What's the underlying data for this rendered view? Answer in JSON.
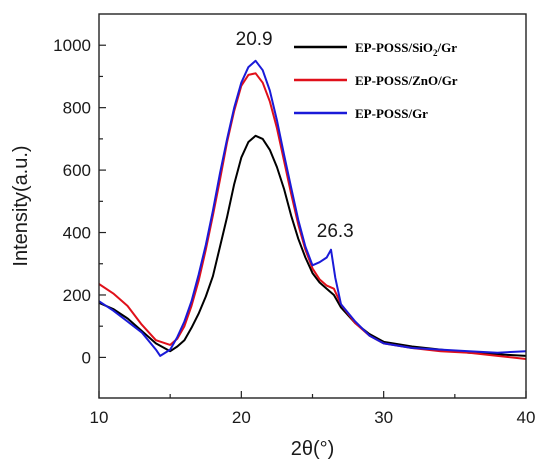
{
  "chart_data": {
    "type": "line",
    "xlabel": "2θ(°)",
    "ylabel": "Intensity(a.u.)",
    "xlim": [
      10,
      40
    ],
    "ylim": [
      -130,
      1100
    ],
    "x_ticks": [
      10,
      20,
      30,
      40
    ],
    "x_tick_labels": [
      "10",
      "20",
      "30",
      "40"
    ],
    "y_ticks": [
      0,
      200,
      400,
      600,
      800,
      1000
    ],
    "y_tick_labels": [
      "0",
      "200",
      "400",
      "600",
      "800",
      "1000"
    ],
    "grid": false,
    "legend_position": "top-right",
    "legend": [
      {
        "text": "EP-POSS/SiO",
        "sub": "2",
        "tail": "/Gr",
        "color": "#000000"
      },
      {
        "text": "EP-POSS/ZnO/Gr",
        "sub": "",
        "tail": "",
        "color": "#e0101a"
      },
      {
        "text": "EP-POSS/Gr",
        "sub": "",
        "tail": "",
        "color": "#1a1ad8"
      }
    ],
    "annotations": [
      {
        "text": "20.9",
        "x": 20.9,
        "y": 1000
      },
      {
        "text": "26.3",
        "x": 26.6,
        "y": 385
      }
    ],
    "series": [
      {
        "color": "#000000",
        "x": [
          10,
          11,
          12,
          13,
          14,
          15,
          15.5,
          16,
          16.5,
          17,
          17.5,
          18,
          18.5,
          19,
          19.5,
          20,
          20.5,
          21,
          21.5,
          22,
          22.5,
          23,
          23.5,
          24,
          24.5,
          25,
          25.5,
          26,
          26.5,
          27,
          28,
          29,
          30,
          32,
          34,
          36,
          38,
          40
        ],
        "y": [
          175,
          155,
          125,
          85,
          45,
          20,
          35,
          55,
          95,
          140,
          195,
          260,
          355,
          450,
          555,
          640,
          690,
          710,
          700,
          665,
          610,
          540,
          455,
          380,
          320,
          270,
          240,
          220,
          200,
          160,
          110,
          75,
          50,
          35,
          25,
          15,
          10,
          5
        ]
      },
      {
        "color": "#e0101a",
        "x": [
          10,
          11,
          12,
          13,
          14,
          15,
          15.5,
          16,
          16.5,
          17,
          17.5,
          18,
          18.5,
          19,
          19.5,
          20,
          20.5,
          21,
          21.5,
          22,
          22.5,
          23,
          23.5,
          24,
          24.5,
          25,
          25.5,
          26,
          26.5,
          27,
          28,
          29,
          30,
          32,
          34,
          36,
          38,
          40
        ],
        "y": [
          235,
          205,
          165,
          105,
          55,
          40,
          60,
          100,
          165,
          245,
          345,
          455,
          570,
          690,
          790,
          870,
          905,
          910,
          880,
          820,
          735,
          630,
          525,
          425,
          345,
          285,
          250,
          230,
          220,
          170,
          110,
          70,
          45,
          30,
          20,
          15,
          5,
          -5
        ]
      },
      {
        "color": "#1a1ad8",
        "x": [
          10,
          11,
          12,
          13,
          14,
          14.3,
          15,
          15.5,
          16,
          16.5,
          17,
          17.5,
          18,
          18.5,
          19,
          19.5,
          20,
          20.5,
          21,
          21.5,
          22,
          22.5,
          23,
          23.5,
          24,
          24.5,
          25,
          25.5,
          26,
          26.3,
          26.6,
          27,
          28,
          29,
          30,
          32,
          34,
          36,
          38,
          40
        ],
        "y": [
          180,
          150,
          115,
          80,
          25,
          5,
          25,
          65,
          115,
          180,
          265,
          360,
          470,
          590,
          700,
          800,
          880,
          930,
          950,
          920,
          855,
          760,
          650,
          545,
          440,
          355,
          295,
          305,
          320,
          345,
          255,
          170,
          115,
          70,
          45,
          30,
          25,
          20,
          15,
          20
        ]
      }
    ]
  }
}
